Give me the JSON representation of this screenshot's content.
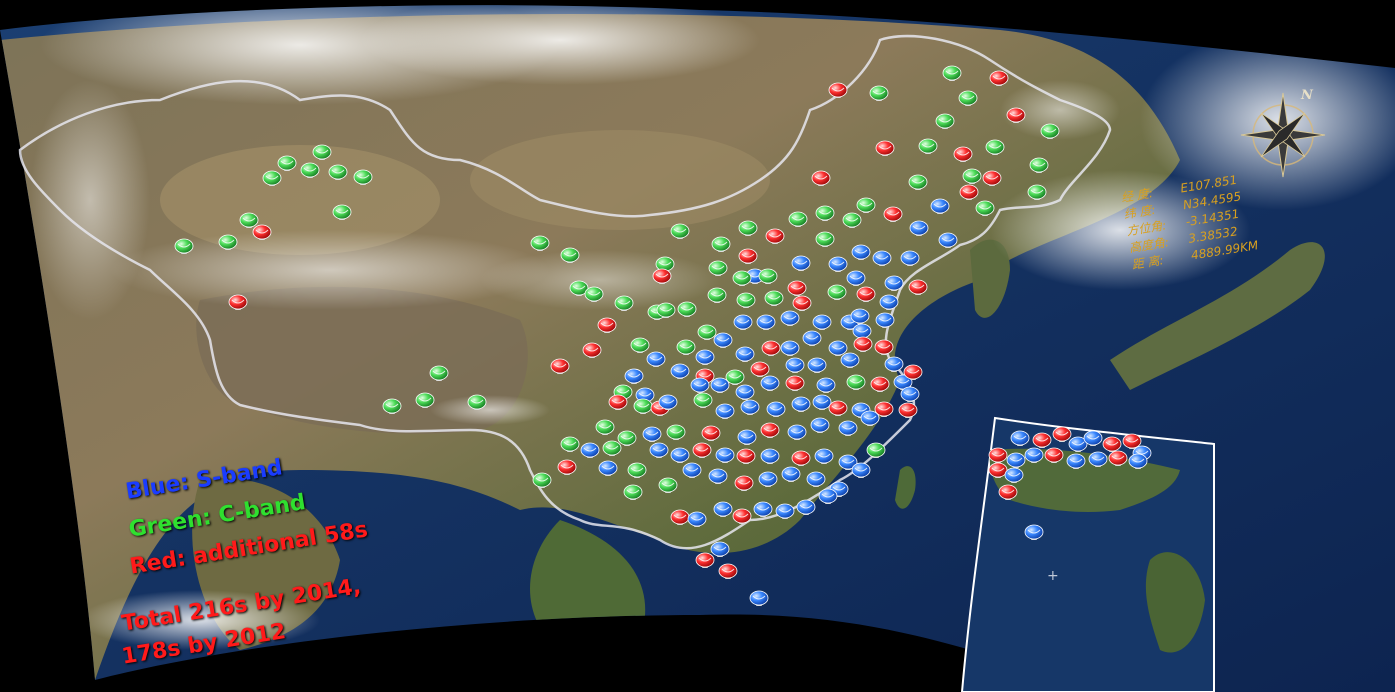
{
  "legend": {
    "blue": "Blue: S-band",
    "green": "Green: C-band",
    "red": "Red:  additional 58s",
    "total_line1": "Total 216s by 2014,",
    "total_line2": "178s by 2012",
    "colors": {
      "blue": "#2f7fff",
      "green": "#3fd24f",
      "red": "#ff2020"
    }
  },
  "compass": {
    "north_label": "N"
  },
  "readout": [
    {
      "label": "经  度:",
      "value": "E107.851"
    },
    {
      "label": "纬  度:",
      "value": "N34.4595"
    },
    {
      "label": "方位角:",
      "value": "-3.14351"
    },
    {
      "label": "高度角:",
      "value": "3.38532"
    },
    {
      "label": "距  离:",
      "value": "4889.99KM"
    }
  ],
  "icons": {
    "radar": "radar-dish-icon",
    "compass": "compass-rose-icon"
  }
}
